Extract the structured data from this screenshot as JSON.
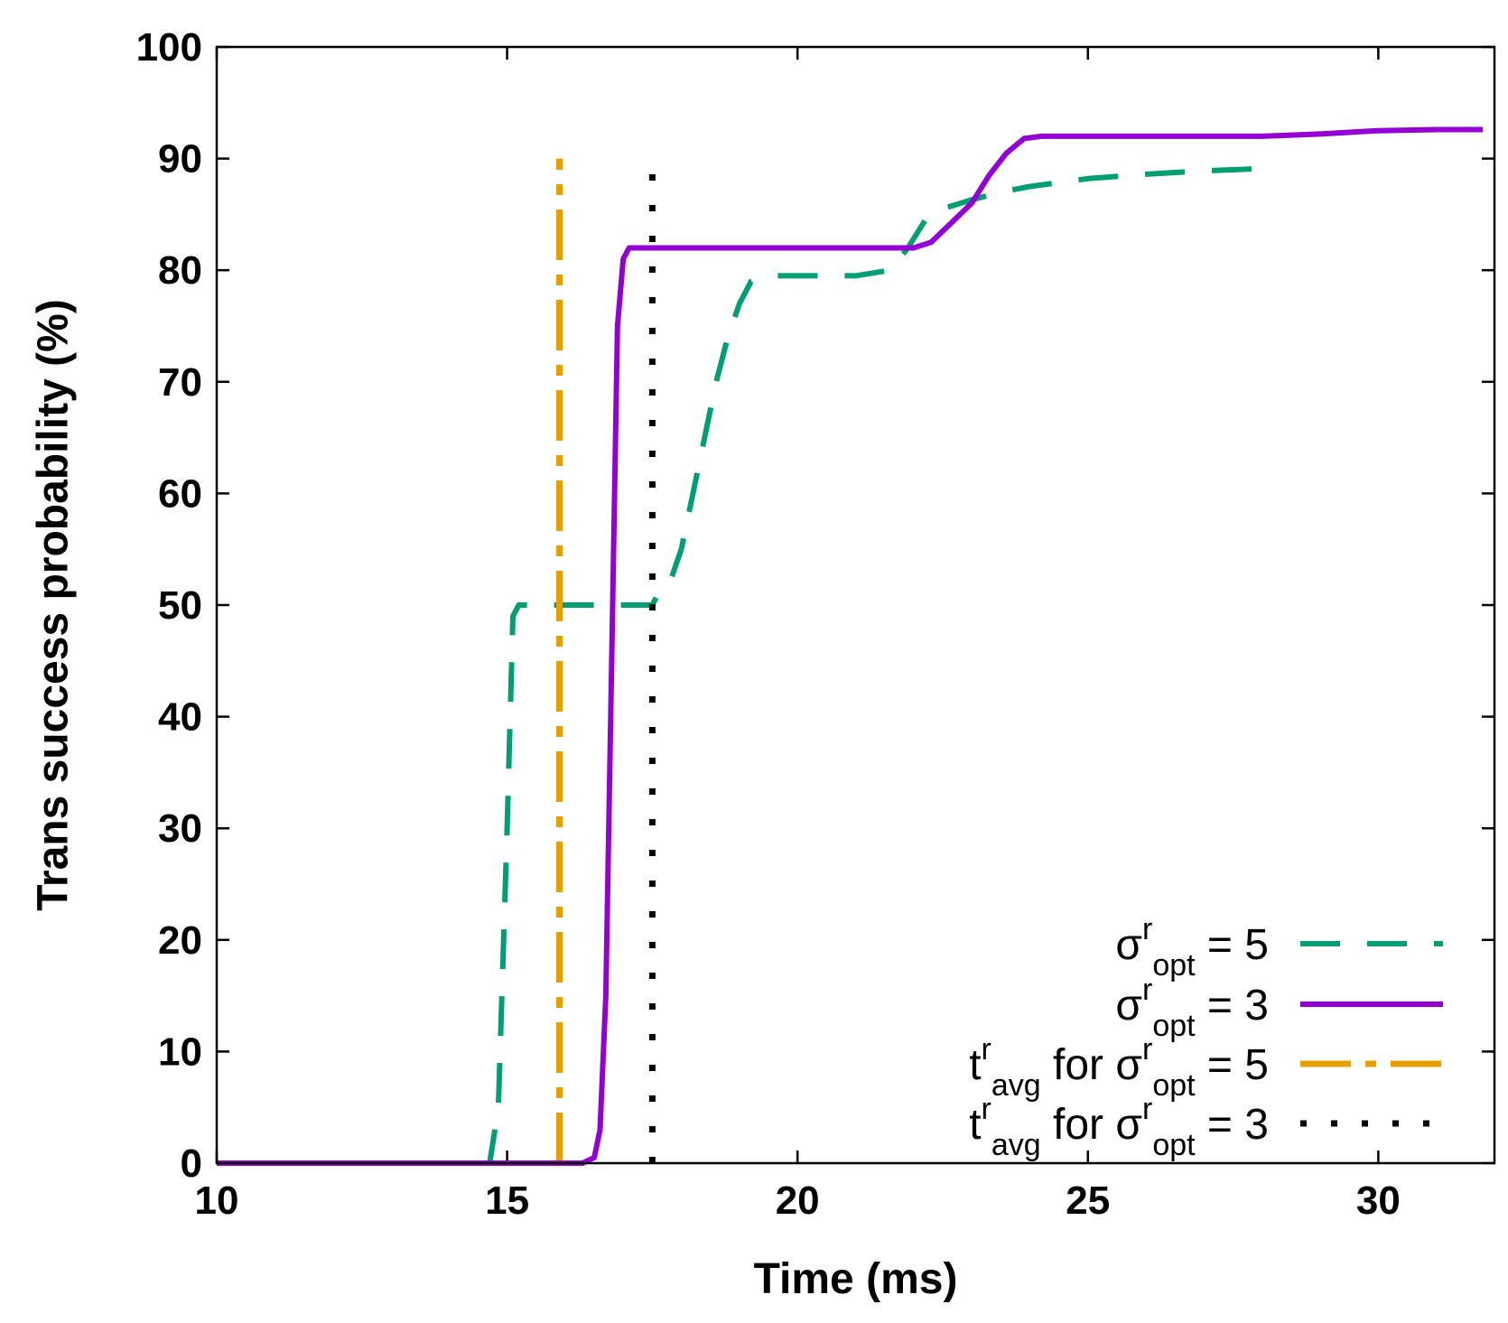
{
  "chart_data": {
    "type": "line",
    "title": "",
    "xlabel": "Time (ms)",
    "ylabel": "Trans success probability (%)",
    "xlim": [
      10,
      32
    ],
    "ylim": [
      0,
      100
    ],
    "xticks": [
      10,
      15,
      20,
      25,
      30
    ],
    "yticks": [
      0,
      10,
      20,
      30,
      40,
      50,
      60,
      70,
      80,
      90,
      100
    ],
    "grid": false,
    "legend_position": "bottom-right",
    "series": [
      {
        "name": "σ^r_opt = 5",
        "legend": {
          "base": "σ",
          "sup": "r",
          "sub": "opt",
          "suffix": " = 5",
          "prefix": ""
        },
        "style": "dashed",
        "color": "#009e73",
        "x": [
          10,
          14.7,
          14.85,
          15.0,
          15.1,
          15.2,
          15.25,
          16.0,
          17.5,
          17.6,
          17.8,
          18.0,
          18.2,
          18.4,
          18.6,
          18.8,
          19.0,
          19.2,
          19.5,
          20.0,
          21.0,
          21.6,
          21.9,
          22.2,
          22.5,
          23.0,
          23.5,
          24.0,
          25.0,
          26.0,
          27.0,
          28.0
        ],
        "y": [
          0,
          0,
          5,
          30,
          49,
          50,
          50,
          50,
          50,
          51,
          52,
          55,
          60,
          65,
          70,
          74,
          77,
          79,
          79.5,
          79.5,
          79.5,
          80,
          82,
          84.5,
          85.5,
          86.3,
          87,
          87.5,
          88.2,
          88.6,
          88.9,
          89.1
        ]
      },
      {
        "name": "σ^r_opt = 3",
        "legend": {
          "base": "σ",
          "sup": "r",
          "sub": "opt",
          "suffix": " = 3",
          "prefix": ""
        },
        "style": "solid",
        "color": "#9400d3",
        "x": [
          10,
          16.3,
          16.5,
          16.6,
          16.7,
          16.8,
          16.9,
          17.0,
          17.1,
          17.5,
          18.0,
          19.0,
          20.0,
          21.0,
          22.0,
          22.3,
          22.6,
          23.0,
          23.3,
          23.6,
          23.9,
          24.2,
          24.5,
          25.0,
          27.0,
          28.0,
          29.0,
          30.0,
          31.0,
          31.8
        ],
        "y": [
          0,
          0,
          0.5,
          3,
          15,
          45,
          75,
          81,
          82,
          82,
          82,
          82,
          82,
          82,
          82,
          82.5,
          84,
          86,
          88.5,
          90.5,
          91.8,
          92,
          92,
          92,
          92,
          92,
          92.2,
          92.5,
          92.6,
          92.6
        ]
      },
      {
        "name": "t^r_avg for σ^r_opt = 5",
        "legend": {
          "prefix": "t",
          "prefix_sup": "r",
          "prefix_sub": "avg",
          "mid": " for ",
          "base": "σ",
          "sup": "r",
          "sub": "opt",
          "suffix": " = 5"
        },
        "style": "dash-dot",
        "color": "#e69f00",
        "x": [
          15.9,
          15.9
        ],
        "y": [
          0,
          90
        ]
      },
      {
        "name": "t^r_avg for σ^r_opt = 3",
        "legend": {
          "prefix": "t",
          "prefix_sup": "r",
          "prefix_sub": "avg",
          "mid": " for ",
          "base": "σ",
          "sup": "r",
          "sub": "opt",
          "suffix": " = 3"
        },
        "style": "dotted",
        "color": "#000000",
        "x": [
          17.5,
          17.5
        ],
        "y": [
          0,
          90
        ]
      }
    ]
  }
}
